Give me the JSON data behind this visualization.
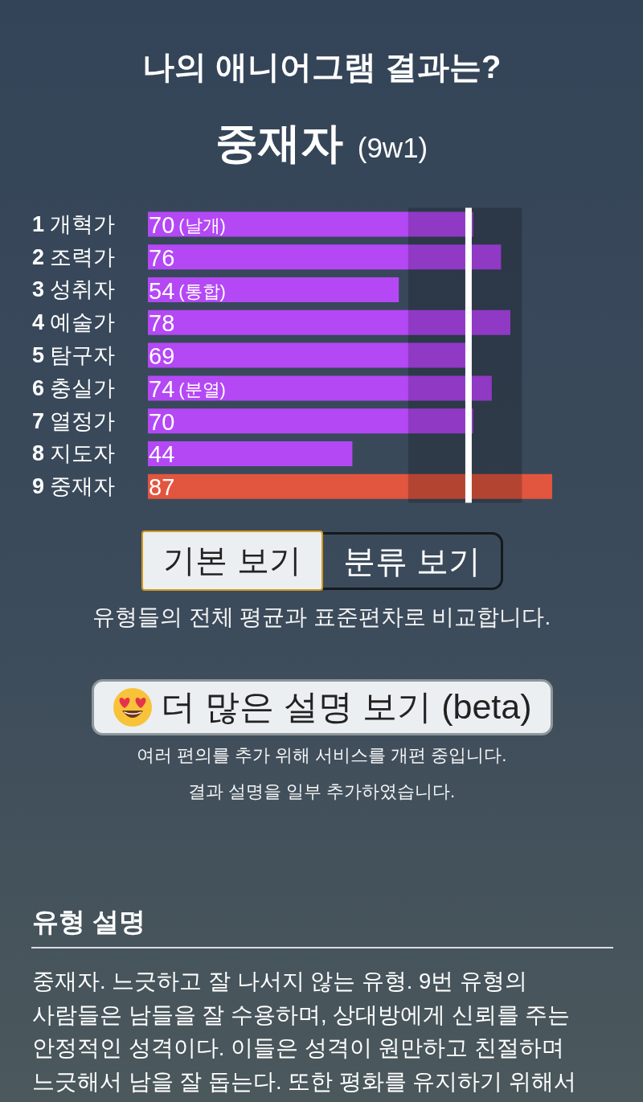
{
  "chart_data": {
    "type": "bar",
    "orientation": "horizontal",
    "title": "나의 애니어그램 결과는?",
    "subtitle": "중재자 (9w1)",
    "categories": [
      "1 개혁가",
      "2 조력가",
      "3 성취자",
      "4 예술가",
      "5 탐구자",
      "6 충실가",
      "7 열정가",
      "8 지도자",
      "9 중재자"
    ],
    "values": [
      70,
      76,
      54,
      78,
      69,
      74,
      70,
      44,
      87
    ],
    "colors": [
      "#b448f5",
      "#b448f5",
      "#b448f5",
      "#b448f5",
      "#b448f5",
      "#b448f5",
      "#b448f5",
      "#b448f5",
      "#e2553f"
    ],
    "value_labels": [
      "70 (날개)",
      "76",
      "54 (통합)",
      "78",
      "69",
      "74 (분열)",
      "70",
      "44",
      "87"
    ],
    "ref_lines": [
      {
        "axis": "x",
        "value": 69,
        "color": "#ffffff"
      }
    ],
    "bands": [
      {
        "axis": "x",
        "from": 56,
        "to": 80.5,
        "color": "#000000"
      }
    ],
    "tick_labels": "y",
    "annotations": [
      "기본 보기",
      "분류 보기",
      "유형들의 전체 평균과 표준편차로 비교합니다.",
      "더 많은 설명 보기 (beta)",
      "여러 편의를 추가 위해 서비스를 개편 중입니다.",
      "결과 설명을 일부 추가하였습니다.",
      "유형 설명",
      "중재자. 느긋하고 잘 나서지 않는 유형. 9번 유형의 사람들은 남들을 잘 수용하며, 상대방에게 신뢰를 주는 안정적인 성격이다. 이들은 성격이 원만하고 친절하며 느긋해서 남을 잘 돕는다. 또한 평화를 유지하기 위해서"
    ]
  }
}
